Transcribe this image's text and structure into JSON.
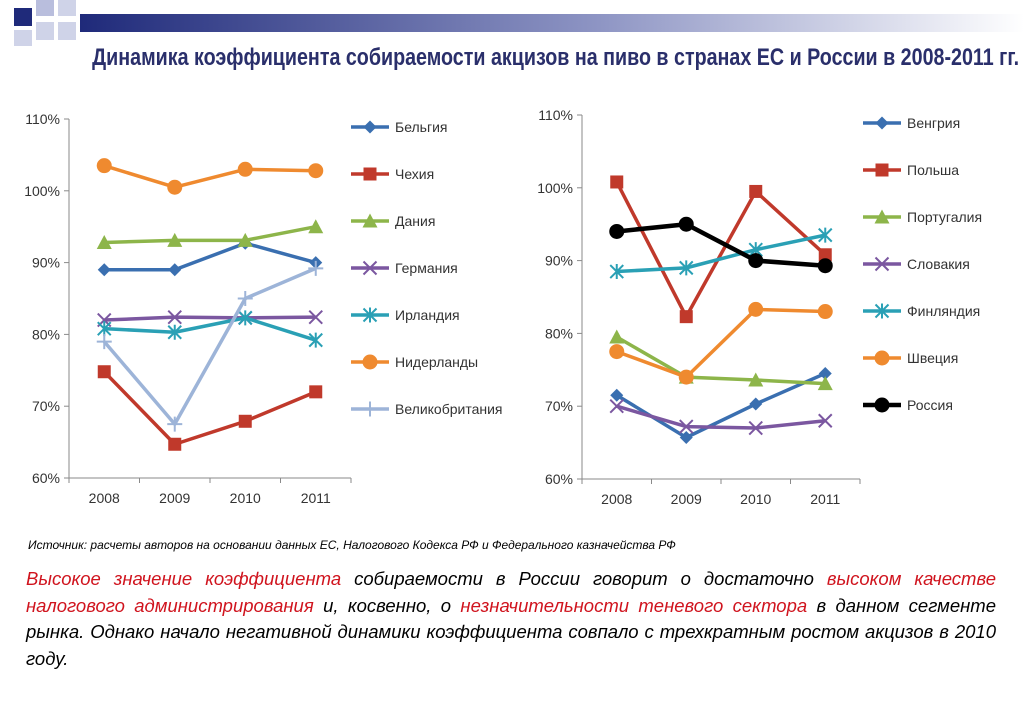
{
  "slide": {
    "title": "Динамика коэффициента собираемости акцизов на пиво в странах ЕС и России в 2008-2011 гг.",
    "source": "Источник: расчеты авторов на основании данных ЕС, Налогового Кодекса РФ и Федерального казначейства РФ",
    "paragraph": [
      {
        "text": "Высокое значение коэффициента",
        "highlight": true
      },
      {
        "text": " собираемости в России говорит о достаточно ",
        "highlight": false
      },
      {
        "text": "высоком качестве налогового администрирования",
        "highlight": true
      },
      {
        "text": " и, косвенно, о ",
        "highlight": false
      },
      {
        "text": "незначительности теневого сектора",
        "highlight": true
      },
      {
        "text": " в данном сегменте рынка. Однако начало негативной динамики коэффициента совпало с трехкратным ростом акцизов в 2010 году.",
        "highlight": false
      }
    ]
  },
  "chart_data": [
    {
      "type": "line",
      "x": [
        "2008",
        "2009",
        "2010",
        "2011"
      ],
      "ylim": [
        60,
        110
      ],
      "yticks": [
        "60%",
        "70%",
        "80%",
        "90%",
        "100%",
        "110%"
      ],
      "grid": false,
      "legend": "right",
      "series": [
        {
          "name": "Бельгия",
          "color": "#3a6fb0",
          "marker": "diamond",
          "values": [
            89,
            89,
            92.7,
            90
          ]
        },
        {
          "name": "Чехия",
          "color": "#c0392b",
          "marker": "square",
          "values": [
            74.8,
            64.7,
            67.9,
            72
          ]
        },
        {
          "name": "Дания",
          "color": "#8db54a",
          "marker": "triangle",
          "values": [
            92.8,
            93.1,
            93.1,
            95
          ]
        },
        {
          "name": "Германия",
          "color": "#7b57a0",
          "marker": "x",
          "values": [
            82,
            82.4,
            82.3,
            82.4
          ]
        },
        {
          "name": "Ирландия",
          "color": "#2aa0b5",
          "marker": "star",
          "values": [
            80.8,
            80.3,
            82.3,
            79.2
          ]
        },
        {
          "name": "Нидерланды",
          "color": "#ef8a2f",
          "marker": "circle",
          "values": [
            103.5,
            100.5,
            103,
            102.8
          ]
        },
        {
          "name": "Великобритания",
          "color": "#9db4d8",
          "marker": "plus",
          "values": [
            79,
            67.5,
            85,
            89.2
          ]
        }
      ]
    },
    {
      "type": "line",
      "x": [
        "2008",
        "2009",
        "2010",
        "2011"
      ],
      "ylim": [
        60,
        110
      ],
      "yticks": [
        "60%",
        "70%",
        "80%",
        "90%",
        "100%",
        "110%"
      ],
      "grid": false,
      "legend": "right",
      "series": [
        {
          "name": "Венгрия",
          "color": "#3a6fb0",
          "marker": "diamond",
          "values": [
            71.5,
            65.7,
            70.3,
            74.5
          ]
        },
        {
          "name": "Польша",
          "color": "#c0392b",
          "marker": "square",
          "values": [
            100.8,
            82.3,
            99.5,
            90.8
          ]
        },
        {
          "name": "Португалия",
          "color": "#8db54a",
          "marker": "triangle",
          "values": [
            79.5,
            74,
            73.6,
            73.1
          ]
        },
        {
          "name": "Словакия",
          "color": "#7b57a0",
          "marker": "x",
          "values": [
            70,
            67.2,
            67,
            68
          ]
        },
        {
          "name": "Финляндия",
          "color": "#2aa0b5",
          "marker": "star",
          "values": [
            88.5,
            89,
            91.5,
            93.5
          ]
        },
        {
          "name": "Швеция",
          "color": "#ef8a2f",
          "marker": "circle",
          "values": [
            77.5,
            74,
            83.3,
            83
          ]
        },
        {
          "name": "Россия",
          "color": "#000000",
          "marker": "circle",
          "values": [
            94,
            95,
            90,
            89.3
          ]
        }
      ]
    }
  ]
}
